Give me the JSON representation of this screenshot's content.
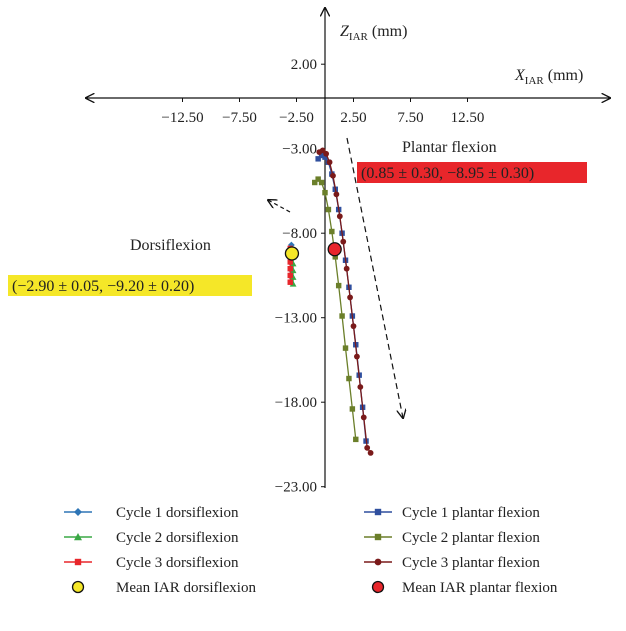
{
  "chart_data": {
    "type": "scatter",
    "title": "",
    "xlabel": "X",
    "xlabel_sub": "IAR",
    "xlabel_unit": "(mm)",
    "ylabel": "Z",
    "ylabel_sub": "IAR",
    "ylabel_unit": "(mm)",
    "xlim": [
      -16,
      15
    ],
    "ylim": [
      -24,
      5
    ],
    "x_ticks": [
      "−12.50",
      "−7.50",
      "−2.50",
      "2.50",
      "7.50",
      "12.50"
    ],
    "x_tick_values": [
      -12.5,
      -7.5,
      -2.5,
      2.5,
      7.5,
      12.5
    ],
    "y_ticks": [
      "2.00",
      "−3.00",
      "−8.00",
      "−13.00",
      "−18.00",
      "−23.00"
    ],
    "y_tick_values": [
      2,
      -3,
      -8,
      -13,
      -18,
      -23
    ],
    "grid": false,
    "legend_position": "bottom",
    "series": [
      {
        "name": "Cycle 1 dorsiflexion",
        "color": "#2e75b6",
        "marker": "diamond",
        "x": [
          -2.95,
          -2.95,
          -2.95,
          -2.95,
          -2.95,
          -2.95
        ],
        "y": [
          -8.7,
          -9.0,
          -9.4,
          -9.8,
          -10.2,
          -10.6
        ]
      },
      {
        "name": "Cycle 1 plantar flexion",
        "color": "#2f4f9e",
        "marker": "square",
        "x": [
          -0.6,
          -0.3,
          0.0,
          0.3,
          0.6,
          0.9,
          1.2,
          1.5,
          1.8,
          2.1,
          2.4,
          2.7,
          3.0,
          3.3,
          3.6
        ],
        "y": [
          -3.6,
          -3.4,
          -3.5,
          -3.8,
          -4.5,
          -5.4,
          -6.6,
          -8.0,
          -9.6,
          -11.2,
          -12.9,
          -14.6,
          -16.4,
          -18.3,
          -20.3
        ]
      },
      {
        "name": "Cycle 2 dorsiflexion",
        "color": "#3aa845",
        "marker": "triangle",
        "x": [
          -2.8,
          -2.8,
          -2.8,
          -2.8,
          -2.8,
          -2.8
        ],
        "y": [
          -9.0,
          -9.4,
          -9.8,
          -10.2,
          -10.6,
          -11.0
        ]
      },
      {
        "name": "Cycle 2 plantar flexion",
        "color": "#6b7f2a",
        "marker": "square",
        "x": [
          -0.9,
          -0.6,
          -0.3,
          0.0,
          0.3,
          0.6,
          0.9,
          1.2,
          1.5,
          1.8,
          2.1,
          2.4,
          2.7
        ],
        "y": [
          -5.0,
          -4.8,
          -5.0,
          -5.6,
          -6.6,
          -7.9,
          -9.4,
          -11.1,
          -12.9,
          -14.8,
          -16.6,
          -18.4,
          -20.2
        ]
      },
      {
        "name": "Cycle 3 dorsiflexion",
        "color": "#e8262b",
        "marker": "square",
        "x": [
          -3.05,
          -3.05,
          -3.05,
          -3.05,
          -3.05,
          -3.05
        ],
        "y": [
          -8.9,
          -9.3,
          -9.7,
          -10.1,
          -10.5,
          -10.9
        ]
      },
      {
        "name": "Cycle 3 plantar flexion",
        "color": "#7a1a1a",
        "marker": "circle",
        "x": [
          -0.5,
          -0.2,
          0.1,
          0.4,
          0.7,
          1.0,
          1.3,
          1.6,
          1.9,
          2.2,
          2.5,
          2.8,
          3.1,
          3.4,
          3.7,
          4.0
        ],
        "y": [
          -3.2,
          -3.1,
          -3.3,
          -3.8,
          -4.6,
          -5.7,
          -7.0,
          -8.5,
          -10.1,
          -11.8,
          -13.5,
          -15.3,
          -17.1,
          -18.9,
          -20.7,
          -21.0
        ]
      },
      {
        "name": "Mean IAR dorsiflexion",
        "color": "#f5e728",
        "marker": "bigcircle",
        "x": [
          -2.9
        ],
        "y": [
          -9.2
        ]
      },
      {
        "name": "Mean IAR plantar flexion",
        "color": "#e8262b",
        "marker": "bigcircle",
        "x": [
          0.85
        ],
        "y": [
          -8.95
        ]
      }
    ],
    "annotations": {
      "dorsiflexion_label": "Dorsiflexion",
      "dorsiflexion_value": "(−2.90 ± 0.05, −9.20 ± 0.20)",
      "dorsiflexion_box_color": "#f5e728",
      "plantar_label": "Plantar flexion",
      "plantar_value": "(0.85 ± 0.30, −8.95 ± 0.30)",
      "plantar_box_color": "#e8262b"
    }
  }
}
